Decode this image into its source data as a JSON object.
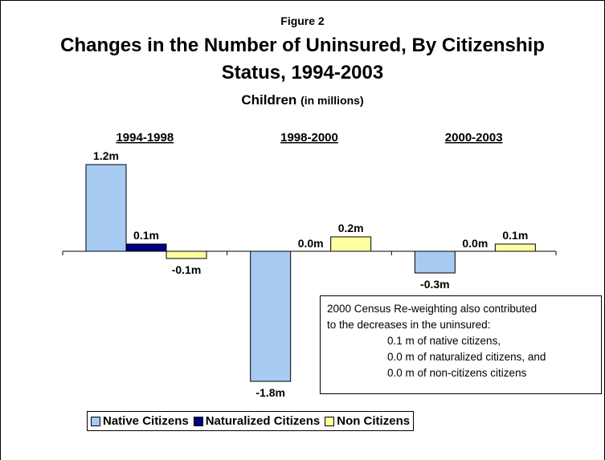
{
  "figure_label": "Figure 2",
  "title_line1": "Changes in the Number of Uninsured, By Citizenship",
  "title_line2": "Status, 1994-2003",
  "subtitle_main": "Children",
  "subtitle_unit": "(in millions)",
  "colors": {
    "native": "#a6caf0",
    "naturalized": "#000080",
    "non": "#ffffa0"
  },
  "chart_data": {
    "type": "bar",
    "categories": [
      "1994-1998",
      "1998-2000",
      "2000-2003"
    ],
    "series": [
      {
        "name": "Native Citizens",
        "values": [
          1.2,
          -1.8,
          -0.3
        ],
        "labels": [
          "1.2m",
          "-1.8m",
          "-0.3m"
        ]
      },
      {
        "name": "Naturalized Citizens",
        "values": [
          0.1,
          0.0,
          0.0
        ],
        "labels": [
          "0.1m",
          "0.0m",
          "0.0m"
        ]
      },
      {
        "name": "Non Citizens",
        "values": [
          -0.1,
          0.2,
          0.1
        ],
        "labels": [
          "-0.1m",
          "0.2m",
          "0.1m"
        ]
      }
    ],
    "legend_position": "bottom"
  },
  "note": {
    "line1": "2000 Census Re-weighting also contributed",
    "line2": "to the decreases in the uninsured:",
    "line3": "0.1 m of native citizens,",
    "line4": "0.0 m of naturalized citizens, and",
    "line5": "0.0 m of non-citizens citizens"
  }
}
